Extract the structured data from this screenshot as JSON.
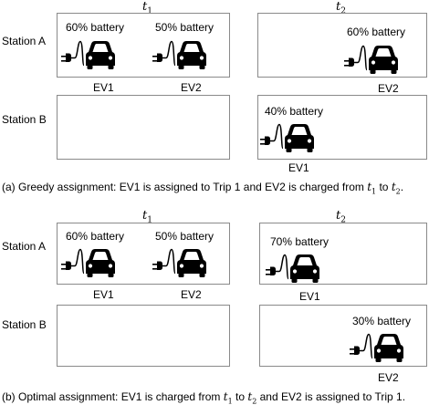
{
  "panels": [
    {
      "t1_label": "t",
      "t1_sub": "1",
      "t2_label": "t",
      "t2_sub": "2",
      "station_a": "Station A",
      "station_b": "Station B",
      "evs": [
        {
          "battery": "60% battery",
          "label": "EV1"
        },
        {
          "battery": "50% battery",
          "label": "EV2"
        },
        {
          "battery": "60% battery",
          "label": "EV2"
        },
        {
          "battery": "40% battery",
          "label": "EV1"
        }
      ],
      "caption": {
        "pre": "(a) Greedy assignment: EV1 is assigned to Trip 1 and EV2 is charged from ",
        "t": "t",
        "t_sub1": "1",
        "mid": " to ",
        "t_sub2": "2",
        "post": "."
      }
    },
    {
      "t1_label": "t",
      "t1_sub": "1",
      "t2_label": "t",
      "t2_sub": "2",
      "station_a": "Station A",
      "station_b": "Station B",
      "evs": [
        {
          "battery": "60% battery",
          "label": "EV1"
        },
        {
          "battery": "50% battery",
          "label": "EV2"
        },
        {
          "battery": "70% battery",
          "label": "EV1"
        },
        {
          "battery": "30% battery",
          "label": "EV2"
        }
      ],
      "caption": {
        "pre": "(b) Optimal assignment: EV1 is charged from ",
        "t": "t",
        "t_sub1": "1",
        "mid": " to ",
        "t_sub2": "2",
        "post": " and EV2 is assigned to Trip 1."
      }
    }
  ],
  "icons": {
    "ev": "ev-car-plug-icon"
  }
}
